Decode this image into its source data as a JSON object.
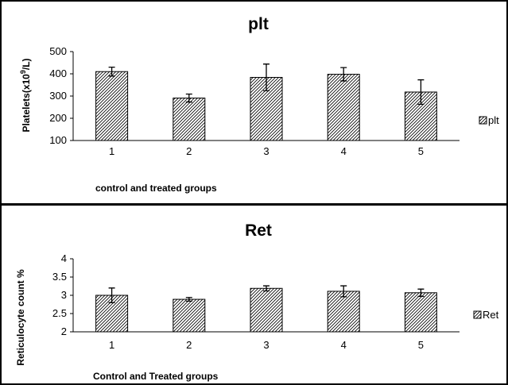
{
  "chart_data": [
    {
      "type": "bar",
      "title": "plt",
      "categories": [
        "1",
        "2",
        "3",
        "4",
        "5"
      ],
      "series": [
        {
          "name": "plt",
          "values": [
            410,
            291,
            384,
            398,
            318
          ],
          "error": [
            20,
            18,
            60,
            30,
            55
          ]
        }
      ],
      "xlabel": "control and treated groups",
      "ylabel_pre": "Platelets(x10",
      "ylabel_sup": "9",
      "ylabel_post": "/L)",
      "ylim": [
        100,
        500
      ],
      "yticks": [
        "100",
        "200",
        "300",
        "400",
        "500"
      ],
      "grid": false,
      "legend_position": "right",
      "bar_fill": "diagonal-hatch"
    },
    {
      "type": "bar",
      "title": "Ret",
      "categories": [
        "1",
        "2",
        "3",
        "4",
        "5"
      ],
      "series": [
        {
          "name": "Ret",
          "values": [
            3.0,
            2.89,
            3.19,
            3.11,
            3.07
          ],
          "error": [
            0.2,
            0.05,
            0.07,
            0.15,
            0.1
          ]
        }
      ],
      "xlabel": "Control and Treated groups",
      "ylabel": "Reticulocyte count %",
      "ylim": [
        2,
        4
      ],
      "yticks": [
        "2",
        "2.5",
        "3",
        "3.5",
        "4"
      ],
      "grid": false,
      "legend_position": "right",
      "bar_fill": "diagonal-hatch"
    }
  ]
}
